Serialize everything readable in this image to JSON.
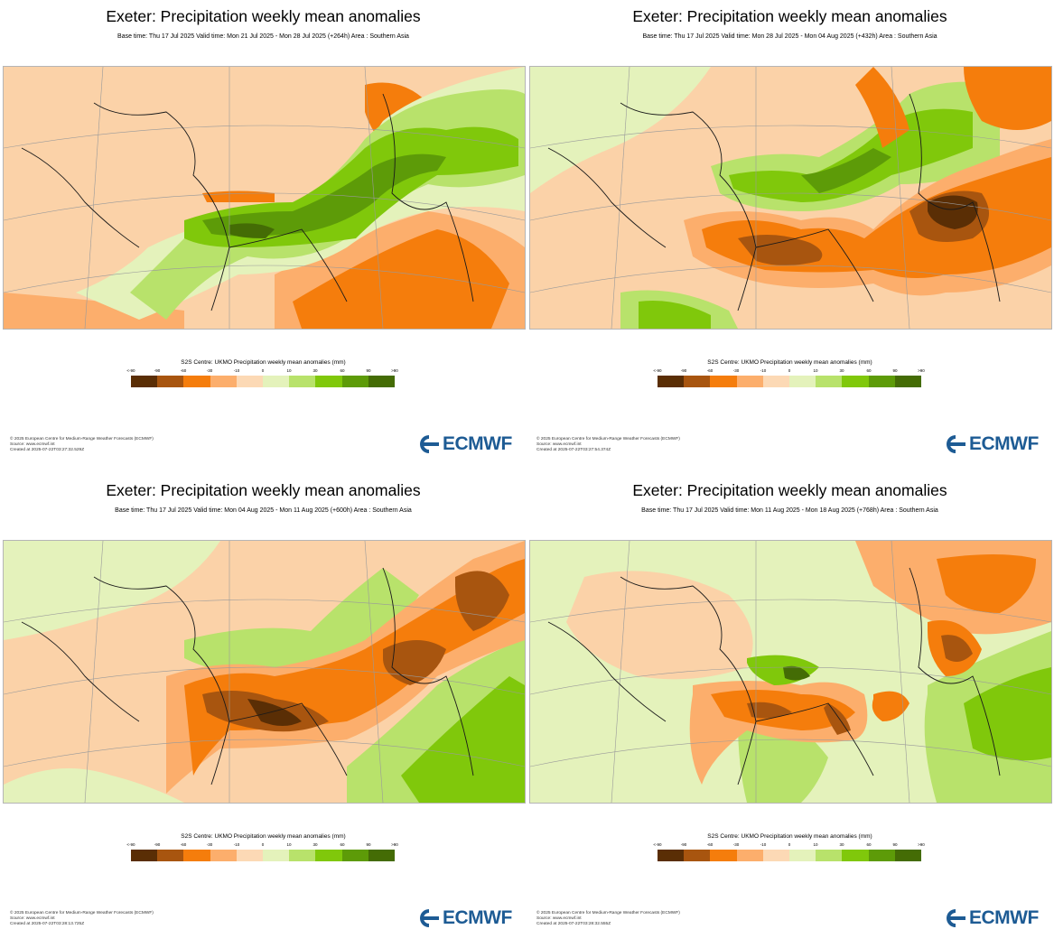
{
  "legend_colors": [
    "#5a2e05",
    "#a8550f",
    "#f57d0c",
    "#fcae6c",
    "#fcd9b5",
    "#e4f2bb",
    "#b8e26b",
    "#80c80b",
    "#5d9b08",
    "#446c05"
  ],
  "panels": [
    {
      "title": "Exeter: Precipitation weekly mean anomalies",
      "subtitle": "Base time: Thu 17 Jul 2025 Valid time: Mon 21 Jul 2025 - Mon 28 Jul 2025 (+264h) Area : Southern Asia",
      "legend_title": "S2S Centre: UKMO Precipitation weekly mean anomalies (mm)",
      "legend_ticks": [
        "<-90",
        "-90",
        "-60",
        "-30",
        "-10",
        "0",
        "10",
        "30",
        "60",
        "90",
        ">90"
      ],
      "footer_copyright": "© 2025 European Centre for Medium-Range Weather Forecasts (ECMWF)",
      "footer_source": "Source: www.ecmwf.int",
      "footer_created": "Created at 2025-07-22T03:27:32.529Z",
      "logo_text": "ECMWF"
    },
    {
      "title": "Exeter: Precipitation weekly mean anomalies",
      "subtitle": "Base time: Thu 17 Jul 2025 Valid time: Mon 28 Jul 2025 - Mon 04 Aug 2025 (+432h) Area : Southern Asia",
      "legend_title": "S2S Centre: UKMO Precipitation weekly mean anomalies (mm)",
      "legend_ticks": [
        "<-90",
        "-90",
        "-60",
        "-30",
        "-10",
        "0",
        "10",
        "30",
        "60",
        "90",
        ">90"
      ],
      "footer_copyright": "© 2025 European Centre for Medium-Range Weather Forecasts (ECMWF)",
      "footer_source": "Source: www.ecmwf.int",
      "footer_created": "Created at 2025-07-22T03:27:54.374Z",
      "logo_text": "ECMWF"
    },
    {
      "title": "Exeter: Precipitation weekly mean anomalies",
      "subtitle": "Base time: Thu 17 Jul 2025 Valid time: Mon 04 Aug 2025 - Mon 11 Aug 2025 (+600h) Area : Southern Asia",
      "legend_title": "S2S Centre: UKMO Precipitation weekly mean anomalies (mm)",
      "legend_ticks": [
        "<-90",
        "-90",
        "-60",
        "-30",
        "-10",
        "0",
        "10",
        "30",
        "60",
        "90",
        ">90"
      ],
      "footer_copyright": "© 2025 European Centre for Medium-Range Weather Forecasts (ECMWF)",
      "footer_source": "Source: www.ecmwf.int",
      "footer_created": "Created at 2025-07-22T03:28:13.725Z",
      "logo_text": "ECMWF"
    },
    {
      "title": "Exeter: Precipitation weekly mean anomalies",
      "subtitle": "Base time: Thu 17 Jul 2025 Valid time: Mon 11 Aug 2025 - Mon 18 Aug 2025 (+768h) Area : Southern Asia",
      "legend_title": "S2S Centre: UKMO Precipitation weekly mean anomalies (mm)",
      "legend_ticks": [
        "<-90",
        "-90",
        "-60",
        "-30",
        "-10",
        "0",
        "10",
        "30",
        "60",
        "90",
        ">90"
      ],
      "footer_copyright": "© 2025 European Centre for Medium-Range Weather Forecasts (ECMWF)",
      "footer_source": "Source: www.ecmwf.int",
      "footer_created": "Created at 2025-07-22T03:28:32.555Z",
      "logo_text": "ECMWF"
    }
  ]
}
